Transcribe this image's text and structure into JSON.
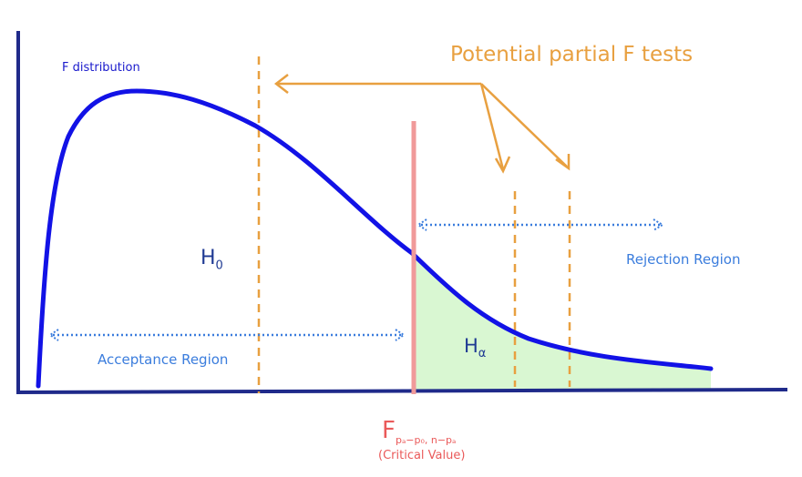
{
  "curve_label": "F distribution",
  "annotation_title": "Potential partial F tests",
  "null_label": {
    "base": "H",
    "subscript": "0"
  },
  "alt_label": {
    "base": "H",
    "subscript": "α"
  },
  "rejection_label": "Rejection Region",
  "acceptance_label": "Acceptance Region",
  "critical": {
    "base": "F",
    "subscript": "pₐ−p₀, n−pₐ",
    "caption": "(Critical Value)"
  },
  "colors": {
    "axis": "#1f2a8a",
    "curve": "#1212e6",
    "critical_line": "#f09a9a",
    "rejection_fill": "#d9f7d2",
    "annotation": "#e8a040",
    "arrows": "#3b7ddd"
  }
}
